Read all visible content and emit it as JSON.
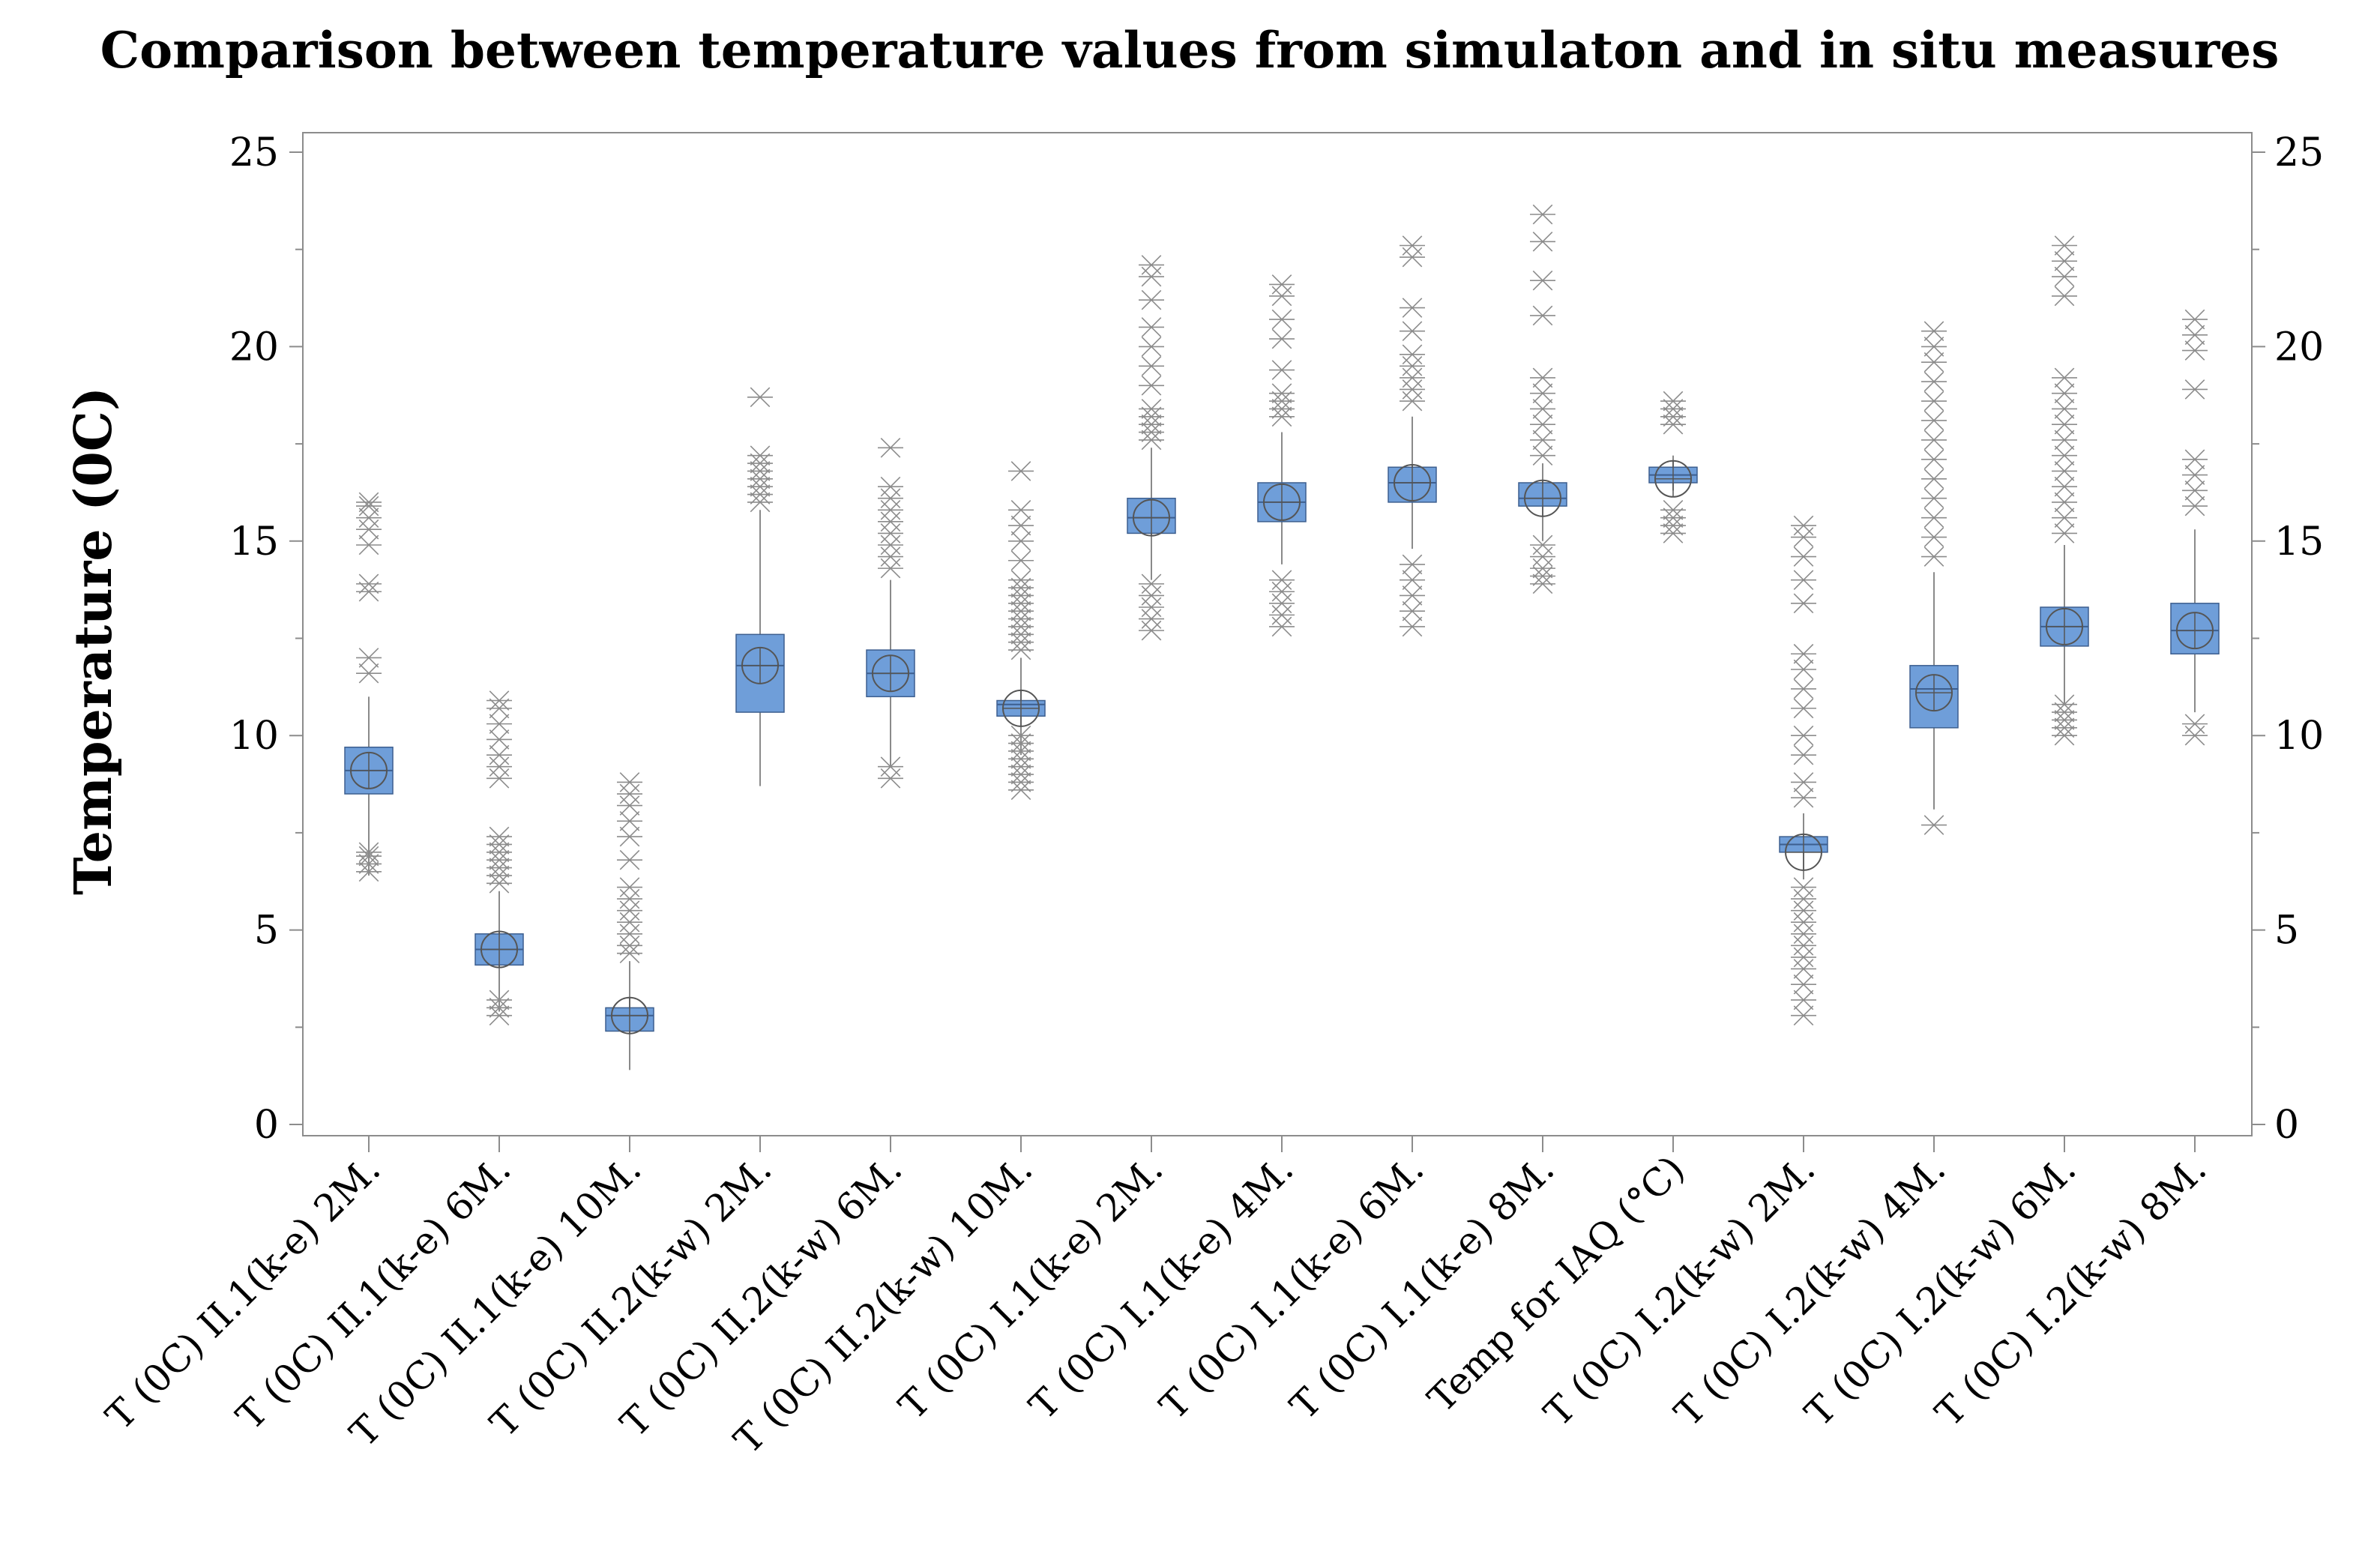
{
  "chart_data": {
    "type": "box",
    "title": "Comparison between temperature values from simulaton and in situ measures",
    "ylabel": "Temperature (0C)",
    "xlabel": "",
    "ylim": [
      0,
      25
    ],
    "yticks": [
      0,
      5,
      10,
      15,
      20,
      25
    ],
    "colors": {
      "box": "#6f9ed9",
      "box_edge": "#3d5f8f",
      "whisker": "#8a8a8a",
      "outlier": "#8c8c8c"
    },
    "series": [
      {
        "name": "T (0C) II.1(k-e) 2M.",
        "min": 6.4,
        "q1": 8.5,
        "median": 9.1,
        "q3": 9.7,
        "max": 11.0,
        "mean": 9.1,
        "outliers": [
          6.5,
          6.7,
          6.9,
          7.0,
          11.6,
          12.0,
          13.7,
          13.9,
          14.9,
          15.3,
          15.6,
          15.9,
          16.0
        ]
      },
      {
        "name": "T (0C) II.1(k-e) 6M.",
        "min": 2.9,
        "q1": 4.1,
        "median": 4.5,
        "q3": 4.9,
        "max": 6.0,
        "mean": 4.5,
        "outliers": [
          2.8,
          3.0,
          3.2,
          6.2,
          6.4,
          6.6,
          6.8,
          7.0,
          7.2,
          7.4,
          8.9,
          9.2,
          9.5,
          9.9,
          10.3,
          10.7,
          10.9
        ]
      },
      {
        "name": "T (0C) II.1(k-e) 10M.",
        "min": 1.4,
        "q1": 2.4,
        "median": 2.8,
        "q3": 3.0,
        "max": 4.2,
        "mean": 2.8,
        "outliers": [
          4.4,
          4.6,
          4.9,
          5.2,
          5.5,
          5.8,
          6.1,
          6.8,
          7.4,
          7.8,
          8.2,
          8.5,
          8.8
        ]
      },
      {
        "name": "T (0C) II.2(k-w) 2M.",
        "min": 8.7,
        "q1": 10.6,
        "median": 11.8,
        "q3": 12.6,
        "max": 15.8,
        "mean": 11.8,
        "outliers": [
          16.0,
          16.2,
          16.4,
          16.6,
          16.8,
          17.0,
          17.2,
          18.7
        ]
      },
      {
        "name": "T (0C) II.2(k-w) 6M.",
        "min": 9.2,
        "q1": 11.0,
        "median": 11.6,
        "q3": 12.2,
        "max": 14.0,
        "mean": 11.6,
        "outliers": [
          8.9,
          9.2,
          14.3,
          14.6,
          14.9,
          15.2,
          15.5,
          15.8,
          16.1,
          16.4,
          17.4
        ]
      },
      {
        "name": "T (0C) II.2(k-w) 10M.",
        "min": 9.5,
        "q1": 10.5,
        "median": 10.8,
        "q3": 10.9,
        "max": 12.0,
        "mean": 10.7,
        "outliers": [
          8.6,
          8.8,
          9.0,
          9.2,
          9.4,
          9.6,
          9.8,
          10.0,
          12.2,
          12.4,
          12.6,
          12.8,
          13.0,
          13.2,
          13.4,
          13.6,
          13.8,
          14.0,
          14.5,
          15.0,
          15.4,
          15.8,
          16.8
        ]
      },
      {
        "name": "T (0C) I.1(k-e) 2M.",
        "min": 14.0,
        "q1": 15.2,
        "median": 15.6,
        "q3": 16.1,
        "max": 17.4,
        "mean": 15.6,
        "outliers": [
          12.7,
          13.0,
          13.3,
          13.6,
          13.9,
          17.6,
          17.8,
          18.0,
          18.2,
          18.4,
          19.0,
          19.5,
          20.0,
          20.5,
          21.2,
          21.8,
          22.1
        ]
      },
      {
        "name": "T (0C) I.1(k-e) 4M.",
        "min": 14.4,
        "q1": 15.5,
        "median": 16.0,
        "q3": 16.5,
        "max": 17.8,
        "mean": 16.0,
        "outliers": [
          12.8,
          13.1,
          13.4,
          13.7,
          14.0,
          18.2,
          18.4,
          18.6,
          18.8,
          19.4,
          20.2,
          20.7,
          21.3,
          21.6
        ]
      },
      {
        "name": "T (0C) I.1(k-e) 6M.",
        "min": 14.8,
        "q1": 16.0,
        "median": 16.5,
        "q3": 16.9,
        "max": 18.2,
        "mean": 16.5,
        "outliers": [
          12.8,
          13.2,
          13.6,
          14.0,
          14.4,
          18.6,
          18.9,
          19.2,
          19.5,
          19.8,
          20.4,
          21.0,
          22.3,
          22.6
        ]
      },
      {
        "name": "T (0C) I.1(k-e) 8M.",
        "min": 15.0,
        "q1": 15.9,
        "median": 16.1,
        "q3": 16.5,
        "max": 17.0,
        "mean": 16.1,
        "outliers": [
          13.9,
          14.1,
          14.3,
          14.6,
          14.9,
          17.2,
          17.6,
          18.0,
          18.4,
          18.8,
          19.2,
          20.8,
          21.7,
          22.7,
          23.4
        ]
      },
      {
        "name": "Temp for IAQ (°C)",
        "min": 16.3,
        "q1": 16.5,
        "median": 16.7,
        "q3": 16.9,
        "max": 17.2,
        "mean": 16.6,
        "outliers": [
          15.2,
          15.4,
          15.6,
          15.8,
          18.0,
          18.2,
          18.4,
          18.6
        ]
      },
      {
        "name": "T (0C) I.2(k-w) 2M.",
        "min": 6.3,
        "q1": 7.0,
        "median": 7.2,
        "q3": 7.4,
        "max": 8.0,
        "mean": 7.0,
        "outliers": [
          2.8,
          3.2,
          3.6,
          4.0,
          4.3,
          4.6,
          4.9,
          5.2,
          5.5,
          5.8,
          6.1,
          8.4,
          8.8,
          9.5,
          10.0,
          10.7,
          11.2,
          11.7,
          12.1,
          13.4,
          14.0,
          14.6,
          15.1,
          15.4
        ]
      },
      {
        "name": "T (0C) I.2(k-w) 4M.",
        "min": 8.1,
        "q1": 10.2,
        "median": 11.2,
        "q3": 11.8,
        "max": 14.2,
        "mean": 11.1,
        "outliers": [
          7.7,
          14.6,
          15.1,
          15.6,
          16.1,
          16.6,
          17.1,
          17.6,
          18.1,
          18.6,
          19.1,
          19.6,
          20.0,
          20.4
        ]
      },
      {
        "name": "T (0C) I.2(k-w) 6M.",
        "min": 10.8,
        "q1": 12.3,
        "median": 12.8,
        "q3": 13.3,
        "max": 14.9,
        "mean": 12.8,
        "outliers": [
          10.0,
          10.2,
          10.4,
          10.6,
          10.8,
          15.2,
          15.6,
          16.0,
          16.4,
          16.8,
          17.2,
          17.6,
          18.0,
          18.4,
          18.8,
          19.2,
          21.3,
          21.8,
          22.2,
          22.6
        ]
      },
      {
        "name": "T (0C) I.2(k-w) 8M.",
        "min": 10.6,
        "q1": 12.1,
        "median": 12.7,
        "q3": 13.4,
        "max": 15.3,
        "mean": 12.7,
        "outliers": [
          10.0,
          10.3,
          15.9,
          16.3,
          16.7,
          17.1,
          18.9,
          19.9,
          20.3,
          20.7
        ]
      }
    ]
  }
}
